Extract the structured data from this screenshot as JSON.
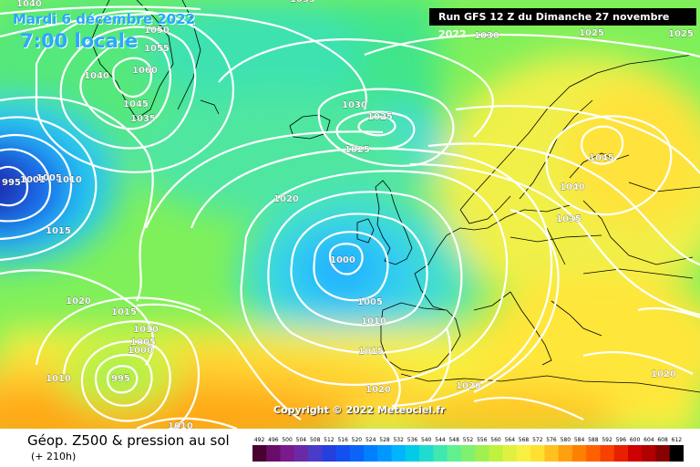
{
  "header": {
    "date": "Mardi 6 décembre 2022",
    "time": "7:00 locale",
    "run": "Run GFS 12 Z du Dimanche 27 novembre 2022"
  },
  "copyright": "Copyright © 2022 Meteociel.fr",
  "footer": {
    "title": "Géop. Z500 & pression au sol",
    "subtitle": "(+ 210h)"
  },
  "legend_values": [
    492,
    496,
    500,
    504,
    508,
    512,
    516,
    520,
    524,
    528,
    532,
    536,
    540,
    544,
    548,
    552,
    556,
    560,
    564,
    568,
    572,
    576,
    580,
    584,
    588,
    592,
    596,
    600,
    604,
    608,
    612
  ],
  "legend_colors": [
    "#4b0033",
    "#6a0d6a",
    "#7a1a8c",
    "#6a2aa8",
    "#4a3cc8",
    "#2440e0",
    "#1450f0",
    "#0a64f8",
    "#0080ff",
    "#0098ff",
    "#00b4ff",
    "#00cce8",
    "#20dcd0",
    "#40e8b0",
    "#60f090",
    "#80f070",
    "#a0f050",
    "#c0f040",
    "#e0f040",
    "#f8f040",
    "#ffe030",
    "#ffc020",
    "#ffa010",
    "#ff8000",
    "#ff6000",
    "#f84000",
    "#e82000",
    "#d00000",
    "#b00000",
    "#880000",
    "#000000"
  ],
  "isobar_labels": [
    {
      "text": "1040"
    },
    {
      "text": "1035"
    },
    {
      "text": "1050"
    },
    {
      "text": "1055"
    },
    {
      "text": "1060"
    },
    {
      "text": "1040"
    },
    {
      "text": "1045"
    },
    {
      "text": "1035"
    },
    {
      "text": "1030"
    },
    {
      "text": "1025"
    },
    {
      "text": "1030"
    },
    {
      "text": "1025"
    },
    {
      "text": "1025"
    },
    {
      "text": "995"
    },
    {
      "text": "1001"
    },
    {
      "text": "1005"
    },
    {
      "text": "1010"
    },
    {
      "text": "1015"
    },
    {
      "text": "1020"
    },
    {
      "text": "1000"
    },
    {
      "text": "1005"
    },
    {
      "text": "1010"
    },
    {
      "text": "1015"
    },
    {
      "text": "1045"
    },
    {
      "text": "1040"
    },
    {
      "text": "1035"
    },
    {
      "text": "1020"
    },
    {
      "text": "1015"
    },
    {
      "text": "1010"
    },
    {
      "text": "1005"
    },
    {
      "text": "1000"
    },
    {
      "text": "995"
    },
    {
      "text": "1010"
    },
    {
      "text": "1020"
    },
    {
      "text": "1020"
    },
    {
      "text": "1025"
    },
    {
      "text": "1020"
    },
    {
      "text": "1010"
    }
  ]
}
